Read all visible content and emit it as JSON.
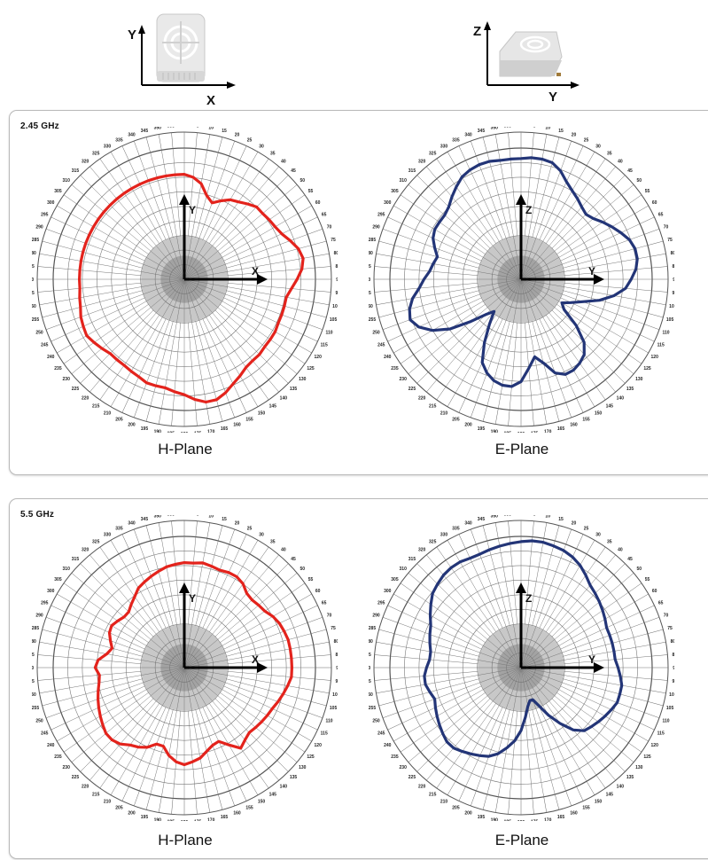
{
  "reference_axes": [
    {
      "vertical": "Y",
      "horizontal": "X",
      "device_icon": "access-point-front-view"
    },
    {
      "vertical": "Z",
      "horizontal": "Y",
      "device_icon": "access-point-side-view"
    }
  ],
  "colors": {
    "h_plane": "#e3231c",
    "e_plane": "#233577",
    "grid": "#777777"
  },
  "chart_data": [
    {
      "type": "polar",
      "panel": "2.45 GHz",
      "title": "H-Plane",
      "axis_labels": [
        "Y",
        "X"
      ],
      "angle_step_deg": 5,
      "rlim": [
        -40,
        0
      ],
      "color": "#e3231c",
      "radius_at_0_45_90_deg_fraction": [
        0.8,
        0.78,
        0.74,
        0.66,
        0.62,
        0.66,
        0.7,
        0.72,
        0.75,
        0.78,
        0.78,
        0.79,
        0.8,
        0.82,
        0.86,
        0.9,
        0.92,
        0.9,
        0.86,
        0.82,
        0.79,
        0.79,
        0.79,
        0.79,
        0.8,
        0.8,
        0.8,
        0.81,
        0.81,
        0.82,
        0.85,
        0.88,
        0.92,
        0.95,
        0.95,
        0.92,
        0.88,
        0.86,
        0.84,
        0.84,
        0.84,
        0.82,
        0.81,
        0.8,
        0.8,
        0.8,
        0.82,
        0.84,
        0.86,
        0.85,
        0.84,
        0.82,
        0.81,
        0.8,
        0.8,
        0.8,
        0.8,
        0.8,
        0.8,
        0.8,
        0.8,
        0.8,
        0.8,
        0.8,
        0.8,
        0.8,
        0.8,
        0.8,
        0.8,
        0.8,
        0.8,
        0.8
      ]
    },
    {
      "type": "polar",
      "panel": "2.45 GHz",
      "title": "E-Plane",
      "axis_labels": [
        "Z",
        "Y"
      ],
      "angle_step_deg": 5,
      "rlim": [
        -40,
        0
      ],
      "color": "#233577",
      "radius_at_0_45_90_deg_fraction": [
        0.92,
        0.93,
        0.93,
        0.92,
        0.88,
        0.82,
        0.78,
        0.75,
        0.72,
        0.7,
        0.72,
        0.76,
        0.8,
        0.84,
        0.88,
        0.9,
        0.9,
        0.88,
        0.84,
        0.8,
        0.72,
        0.62,
        0.5,
        0.42,
        0.36,
        0.4,
        0.55,
        0.68,
        0.75,
        0.78,
        0.8,
        0.8,
        0.76,
        0.66,
        0.6,
        0.68,
        0.78,
        0.82,
        0.82,
        0.8,
        0.76,
        0.7,
        0.56,
        0.42,
        0.32,
        0.38,
        0.5,
        0.66,
        0.78,
        0.86,
        0.9,
        0.88,
        0.84,
        0.78,
        0.74,
        0.7,
        0.68,
        0.66,
        0.7,
        0.74,
        0.76,
        0.76,
        0.76,
        0.78,
        0.82,
        0.86,
        0.9,
        0.92,
        0.93,
        0.93,
        0.92,
        0.92
      ]
    },
    {
      "type": "polar",
      "panel": "5.5 GHz",
      "title": "H-Plane",
      "axis_labels": [
        "Y",
        "X"
      ],
      "angle_step_deg": 5,
      "rlim": [
        -40,
        0
      ],
      "color": "#e3231c",
      "radius_at_0_45_90_deg_fraction": [
        0.8,
        0.8,
        0.81,
        0.8,
        0.79,
        0.8,
        0.8,
        0.78,
        0.74,
        0.73,
        0.74,
        0.75,
        0.78,
        0.8,
        0.81,
        0.82,
        0.82,
        0.82,
        0.82,
        0.82,
        0.8,
        0.78,
        0.76,
        0.74,
        0.73,
        0.72,
        0.71,
        0.7,
        0.72,
        0.75,
        0.68,
        0.62,
        0.63,
        0.66,
        0.7,
        0.72,
        0.74,
        0.72,
        0.68,
        0.62,
        0.62,
        0.67,
        0.7,
        0.72,
        0.76,
        0.78,
        0.78,
        0.76,
        0.74,
        0.72,
        0.7,
        0.68,
        0.66,
        0.65,
        0.68,
        0.66,
        0.6,
        0.57,
        0.6,
        0.63,
        0.64,
        0.62,
        0.6,
        0.6,
        0.63,
        0.66,
        0.7,
        0.72,
        0.74,
        0.76,
        0.78,
        0.79
      ]
    },
    {
      "type": "polar",
      "panel": "5.5 GHz",
      "title": "E-Plane",
      "axis_labels": [
        "Z",
        "Y"
      ],
      "angle_step_deg": 5,
      "rlim": [
        -40,
        0
      ],
      "color": "#233577",
      "radius_at_0_45_90_deg_fraction": [
        0.96,
        0.97,
        0.97,
        0.96,
        0.95,
        0.93,
        0.9,
        0.86,
        0.82,
        0.8,
        0.78,
        0.76,
        0.74,
        0.72,
        0.72,
        0.72,
        0.72,
        0.72,
        0.74,
        0.76,
        0.78,
        0.78,
        0.78,
        0.76,
        0.74,
        0.72,
        0.7,
        0.68,
        0.62,
        0.52,
        0.42,
        0.32,
        0.26,
        0.26,
        0.3,
        0.38,
        0.48,
        0.56,
        0.62,
        0.68,
        0.72,
        0.74,
        0.76,
        0.78,
        0.8,
        0.8,
        0.78,
        0.76,
        0.74,
        0.72,
        0.7,
        0.72,
        0.74,
        0.74,
        0.72,
        0.7,
        0.7,
        0.72,
        0.74,
        0.76,
        0.8,
        0.84,
        0.88,
        0.9,
        0.92,
        0.93,
        0.93,
        0.92,
        0.92,
        0.93,
        0.94,
        0.95
      ]
    }
  ],
  "panels": [
    {
      "title": "2.45 GHz",
      "left_label": "H-Plane",
      "right_label": "E-Plane"
    },
    {
      "title": "5.5 GHz",
      "left_label": "H-Plane",
      "right_label": "E-Plane"
    }
  ]
}
